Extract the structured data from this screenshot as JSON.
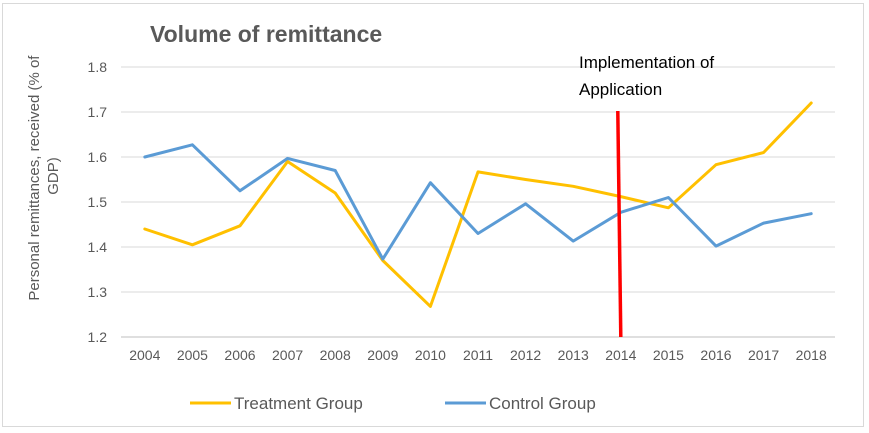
{
  "chart_data": {
    "type": "line",
    "title": "Volume of remittance",
    "xlabel": "",
    "ylabel": "Personal remittances, received (% of GDP)",
    "ylabel_lines": [
      "Personal remittances, received (% of",
      "GDP)"
    ],
    "categories": [
      "2004",
      "2005",
      "2006",
      "2007",
      "2008",
      "2009",
      "2010",
      "2011",
      "2012",
      "2013",
      "2014",
      "2015",
      "2016",
      "2017",
      "2018"
    ],
    "ylim": [
      1.2,
      1.8
    ],
    "yticks": [
      "1.2",
      "1.3",
      "1.4",
      "1.5",
      "1.6",
      "1.7",
      "1.8"
    ],
    "grid": true,
    "legend_position": "bottom",
    "series": [
      {
        "name": "Treatment Group",
        "color": "#FFC000",
        "values": [
          1.44,
          1.405,
          1.447,
          1.59,
          1.52,
          1.37,
          1.268,
          1.567,
          1.55,
          1.535,
          1.512,
          1.487,
          1.583,
          1.61,
          1.72
        ]
      },
      {
        "name": "Control Group",
        "color": "#5B9BD5",
        "values": [
          1.6,
          1.627,
          1.525,
          1.597,
          1.57,
          1.373,
          1.543,
          1.43,
          1.496,
          1.413,
          1.477,
          1.51,
          1.402,
          1.453,
          1.474
        ]
      }
    ],
    "annotation": {
      "text_lines": [
        "Implementation of",
        "Application"
      ],
      "at_category": "2014",
      "color": "#FF0000"
    }
  }
}
